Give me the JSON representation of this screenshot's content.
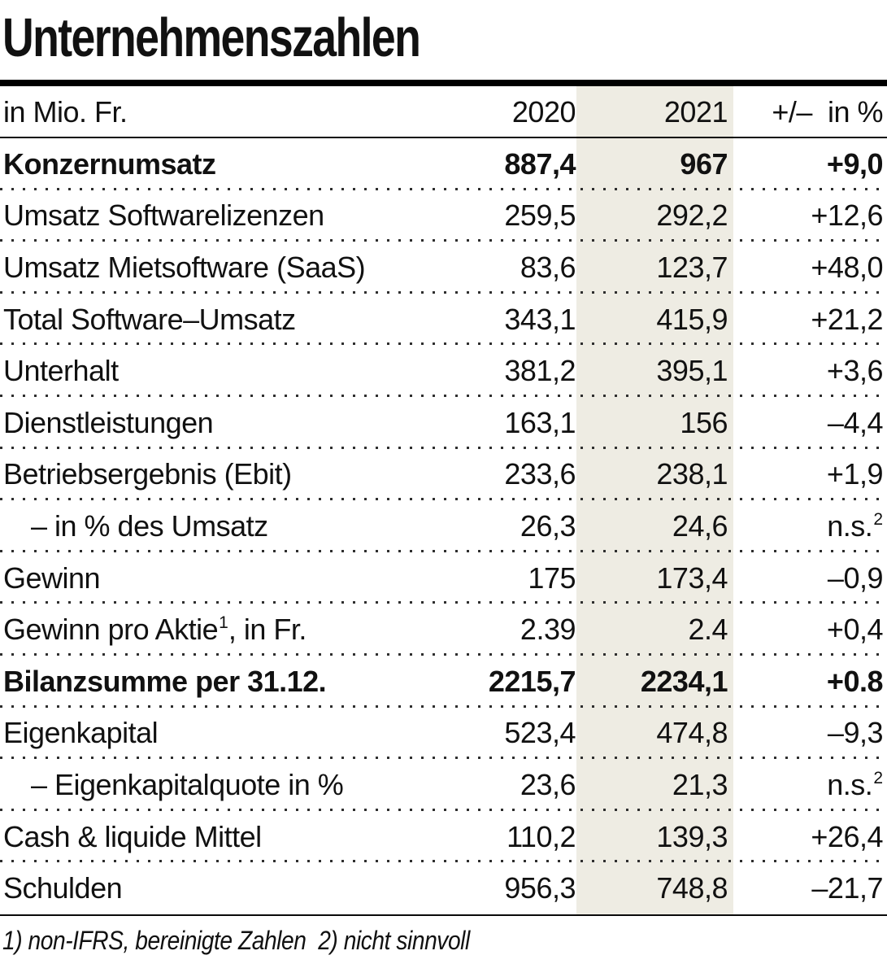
{
  "colors": {
    "highlight_band": "#eeece3",
    "text": "#111111",
    "rule": "#000000",
    "dotted_separator": "#2e2e2e"
  },
  "chart_data": {
    "type": "table",
    "title": "Unternehmenszahlen",
    "unit_label": "in Mio. Fr.",
    "columns": {
      "c2020": "2020",
      "c2021": "2021",
      "change": "+/–  in %"
    },
    "highlight_column": "2021",
    "rows": [
      {
        "label": "Konzernumsatz",
        "v2020": "887,4",
        "v2021": "967",
        "change": "+9,0",
        "bold": true
      },
      {
        "label": "Umsatz Softwarelizenzen",
        "v2020": "259,5",
        "v2021": "292,2",
        "change": "+12,6"
      },
      {
        "label": "Umsatz Mietsoftware (SaaS)",
        "v2020": "83,6",
        "v2021": "123,7",
        "change": "+48,0"
      },
      {
        "label": "Total Software–Umsatz",
        "v2020": "343,1",
        "v2021": "415,9",
        "change": "+21,2"
      },
      {
        "label": "Unterhalt",
        "v2020": "381,2",
        "v2021": "395,1",
        "change": "+3,6"
      },
      {
        "label": "Dienstleistungen",
        "v2020": "163,1",
        "v2021": "156",
        "change": "–4,4"
      },
      {
        "label": "Betriebsergebnis (Ebit)",
        "v2020": "233,6",
        "v2021": "238,1",
        "change": "+1,9"
      },
      {
        "label": "– in % des Umsatz",
        "v2020": "26,3",
        "v2021": "24,6",
        "change": "n.s.",
        "change_sup": "2",
        "indent": true
      },
      {
        "label": "Gewinn",
        "v2020": "175",
        "v2021": "173,4",
        "change": "–0,9"
      },
      {
        "label": "Gewinn pro Aktie",
        "label_sup": "1",
        "label_suffix": ", in Fr.",
        "v2020": "2.39",
        "v2021": "2.4",
        "change": "+0,4"
      },
      {
        "label": "Bilanzsumme per 31.12.",
        "v2020": "2215,7",
        "v2021": "2234,1",
        "change": "+0.8",
        "bold": true
      },
      {
        "label": "Eigenkapital",
        "v2020": "523,4",
        "v2021": "474,8",
        "change": "–9,3"
      },
      {
        "label": "– Eigenkapitalquote in %",
        "v2020": "23,6",
        "v2021": "21,3",
        "change": "n.s.",
        "change_sup": "2",
        "indent": true
      },
      {
        "label": "Cash & liquide Mittel",
        "v2020": "110,2",
        "v2021": "139,3",
        "change": "+26,4"
      },
      {
        "label": "Schulden",
        "v2020": "956,3",
        "v2021": "748,8",
        "change": "–21,7"
      }
    ],
    "footnote": "1) non-IFRS, bereinigte Zahlen  2) nicht sinnvoll"
  }
}
